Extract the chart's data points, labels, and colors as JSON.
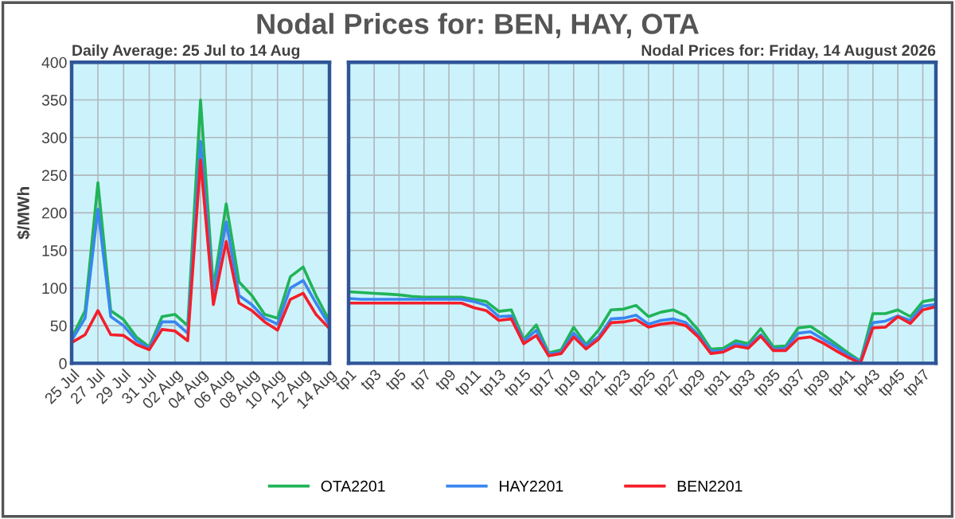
{
  "chart_data": [
    {
      "type": "line",
      "title": "Nodal Prices for: BEN, HAY, OTA",
      "subtitle": "Daily Average: 25 Jul to 14 Aug",
      "ylabel": "$/MWh",
      "categories": [
        "25 Jul",
        null,
        "27 Jul",
        null,
        "29 Jul",
        null,
        "31 Jul",
        null,
        "02 Aug",
        null,
        "04 Aug",
        null,
        "06 Aug",
        null,
        "08 Aug",
        null,
        "10 Aug",
        null,
        "12 Aug",
        null,
        "14 Aug"
      ],
      "series": [
        {
          "name": "OTA2201",
          "color": "#20b458",
          "values": [
            35,
            70,
            240,
            70,
            58,
            35,
            22,
            62,
            65,
            50,
            350,
            100,
            212,
            108,
            90,
            65,
            60,
            115,
            128,
            90,
            58
          ]
        },
        {
          "name": "HAY2201",
          "color": "#3a86f0",
          "values": [
            32,
            60,
            205,
            62,
            50,
            30,
            20,
            55,
            55,
            40,
            295,
            90,
            188,
            90,
            78,
            60,
            52,
            100,
            110,
            80,
            52
          ]
        },
        {
          "name": "BEN2201",
          "color": "#f41e2a",
          "values": [
            28,
            38,
            70,
            38,
            37,
            25,
            18,
            45,
            43,
            30,
            270,
            78,
            162,
            80,
            70,
            55,
            44,
            85,
            93,
            65,
            47
          ]
        }
      ],
      "ylim": [
        0,
        400
      ],
      "yticks": [
        0,
        50,
        100,
        150,
        200,
        250,
        300,
        350,
        400
      ],
      "grid": true,
      "legend": "bottom"
    },
    {
      "type": "line",
      "subtitle": "Nodal Prices for: Friday, 14 August 2026",
      "categories": [
        "tp1",
        null,
        "tp3",
        null,
        "tp5",
        null,
        "tp7",
        null,
        "tp9",
        null,
        "tp11",
        null,
        "tp13",
        null,
        "tp15",
        null,
        "tp17",
        null,
        "tp19",
        null,
        "tp21",
        null,
        "tp23",
        null,
        "tp25",
        null,
        "tp27",
        null,
        "tp29",
        null,
        "tp31",
        null,
        "tp33",
        null,
        "tp35",
        null,
        "tp37",
        null,
        "tp39",
        null,
        "tp41",
        null,
        "tp43",
        null,
        "tp45",
        null,
        "tp47",
        null
      ],
      "series": [
        {
          "color": "#20b458",
          "values": [
            95,
            94,
            93,
            92,
            91,
            89,
            88,
            88,
            88,
            88,
            85,
            82,
            69,
            71,
            32,
            51,
            14,
            18,
            48,
            25,
            44,
            71,
            72,
            77,
            62,
            68,
            71,
            63,
            44,
            19,
            20,
            30,
            26,
            46,
            22,
            23,
            47,
            49,
            38,
            26,
            14,
            3,
            66,
            66,
            71,
            62,
            82,
            85
          ]
        },
        {
          "color": "#3a86f0",
          "values": [
            86,
            85,
            85,
            85,
            85,
            85,
            85,
            85,
            85,
            85,
            82,
            77,
            62,
            63,
            29,
            44,
            12,
            15,
            40,
            23,
            35,
            59,
            60,
            64,
            52,
            57,
            59,
            54,
            38,
            16,
            17,
            26,
            23,
            38,
            19,
            20,
            40,
            42,
            32,
            22,
            11,
            2,
            54,
            56,
            63,
            57,
            76,
            78
          ]
        },
        {
          "color": "#f41e2a",
          "values": [
            80,
            80,
            80,
            80,
            80,
            80,
            80,
            80,
            80,
            80,
            74,
            70,
            57,
            59,
            26,
            37,
            10,
            13,
            35,
            19,
            32,
            54,
            55,
            58,
            48,
            52,
            54,
            50,
            35,
            13,
            15,
            23,
            20,
            36,
            17,
            17,
            33,
            35,
            27,
            17,
            8,
            0,
            47,
            48,
            62,
            53,
            71,
            75
          ]
        }
      ],
      "ylim": [
        0,
        400
      ],
      "yticks": [
        0,
        50,
        100,
        150,
        200,
        250,
        300,
        350,
        400
      ],
      "grid": true,
      "tick_labels": "x"
    }
  ]
}
